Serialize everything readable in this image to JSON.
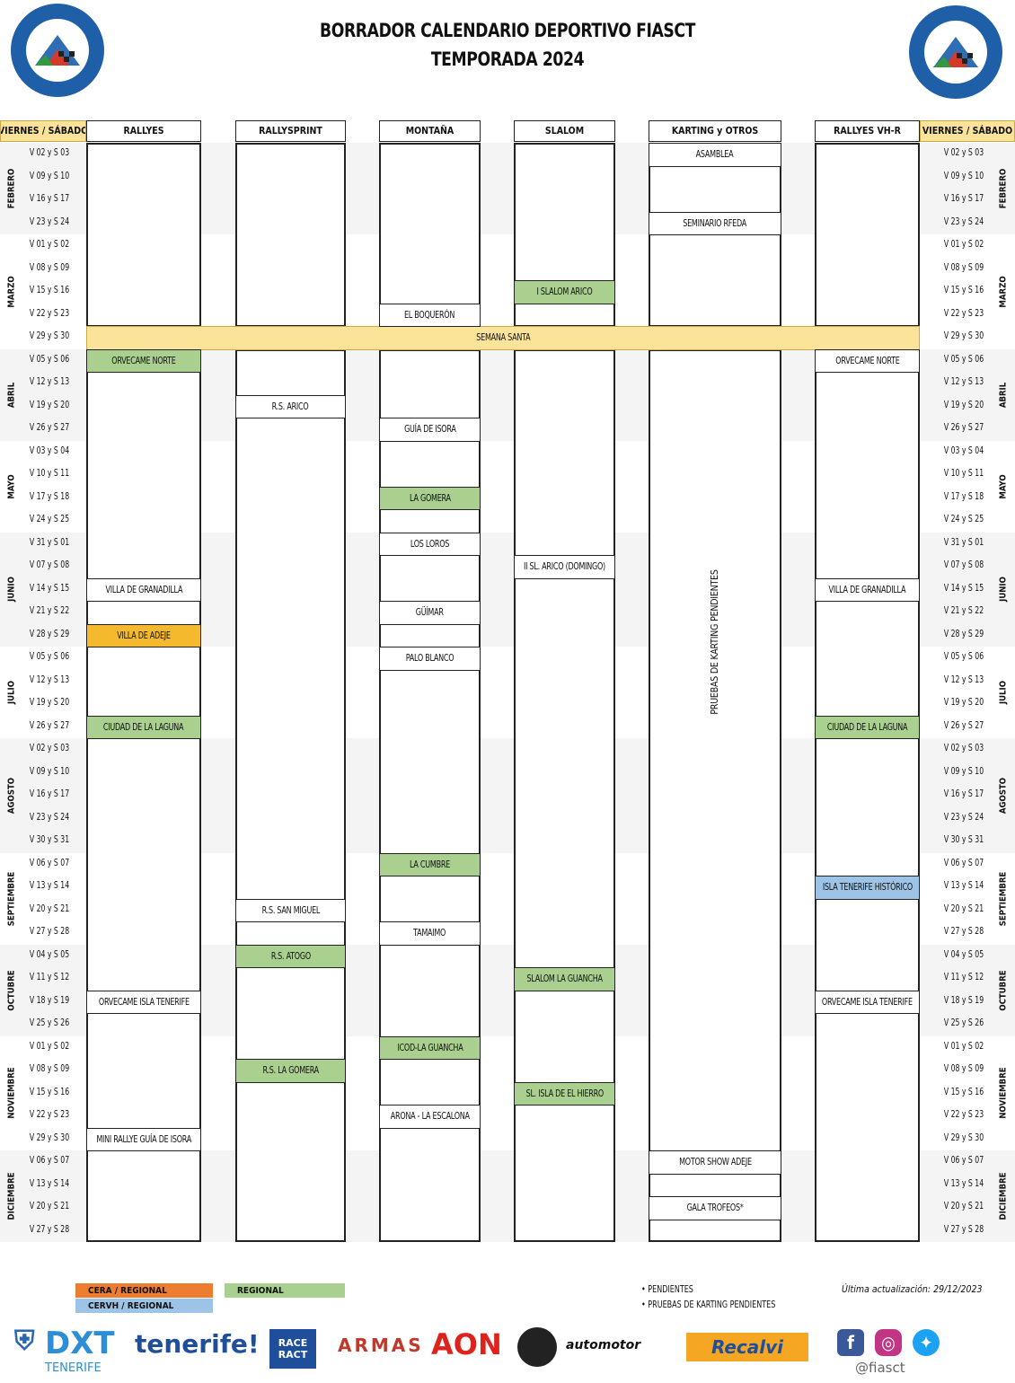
{
  "header": {
    "title": "BORRADOR CALENDARIO DEPORTIVO FIASCT",
    "subtitle": "TEMPORADA 2024"
  },
  "columns": {
    "left_day_header": "VIERNES / SÁBADO",
    "right_day_header": "VIERNES / SÁBADO",
    "disciplines": [
      "RALLYES",
      "RALLYSPRINT",
      "MONTAÑA",
      "SLALOM",
      "KARTING y OTROS",
      "RALLYES VH-R"
    ]
  },
  "months": [
    {
      "name": "FEBRERO",
      "rows": 4
    },
    {
      "name": "MARZO",
      "rows": 5
    },
    {
      "name": "ABRIL",
      "rows": 4
    },
    {
      "name": "MAYO",
      "rows": 4
    },
    {
      "name": "JUNIO",
      "rows": 5
    },
    {
      "name": "JULIO",
      "rows": 4
    },
    {
      "name": "AGOSTO",
      "rows": 5
    },
    {
      "name": "SEPTIEMBRE",
      "rows": 4
    },
    {
      "name": "OCTUBRE",
      "rows": 4
    },
    {
      "name": "NOVIEMBRE",
      "rows": 5
    },
    {
      "name": "DICIEMBRE",
      "rows": 4
    }
  ],
  "days": [
    "V 02 y S 03",
    "V 09 y S 10",
    "V 16 y S 17",
    "V 23 y S 24",
    "V 01 y S 02",
    "V 08 y S 09",
    "V 15 y S 16",
    "V 22 y S 23",
    "V 29 y S 30",
    "V 05 y S 06",
    "V 12 y S 13",
    "V 19 y S 20",
    "V 26 y S 27",
    "V 03 y S 04",
    "V 10 y S 11",
    "V 17 y S 18",
    "V 24 y S 25",
    "V 31 y S 01",
    "V 07 y S 08",
    "V 14 y S 15",
    "V 21 y S 22",
    "V 28 y S 29",
    "V 05 y S 06",
    "V 12 y S 13",
    "V 19 y S 20",
    "V 26 y S 27",
    "V 02 y S 03",
    "V 09 y S 10",
    "V 16 y S 17",
    "V 23 y S 24",
    "V 30 y S 31",
    "V 06 y S 07",
    "V 13 y S 14",
    "V 20 y S 21",
    "V 27 y S 28",
    "V 04 y S 05",
    "V 11 y S 12",
    "V 18 y S 19",
    "V 25 y S 26",
    "V 01 y S 02",
    "V 08 y S 09",
    "V 15 y S 16",
    "V 22 y S 23",
    "V 29 y S 30",
    "V 06 y S 07",
    "V 13 y S 14",
    "V 20 y S 21",
    "V 27 y S 28"
  ],
  "semana_santa": {
    "row": 8,
    "label": "SEMANA SANTA"
  },
  "events": [
    {
      "col": 0,
      "row": 9,
      "label": "ORVECAME NORTE",
      "color": "green"
    },
    {
      "col": 0,
      "row": 19,
      "label": "VILLA DE GRANADILLA",
      "color": "white"
    },
    {
      "col": 0,
      "row": 21,
      "label": "VILLA DE ADEJE",
      "color": "orange"
    },
    {
      "col": 0,
      "row": 25,
      "label": "CIUDAD DE LA LAGUNA",
      "color": "green"
    },
    {
      "col": 0,
      "row": 37,
      "label": "ORVECAME ISLA TENERIFE",
      "color": "white"
    },
    {
      "col": 0,
      "row": 43,
      "label": "MINI RALLYE GUÍA DE ISORA",
      "color": "white"
    },
    {
      "col": 1,
      "row": 11,
      "label": "R.S. ARICO",
      "color": "white"
    },
    {
      "col": 1,
      "row": 33,
      "label": "R.S. SAN MIGUEL",
      "color": "white"
    },
    {
      "col": 1,
      "row": 35,
      "label": "R.S. ATOGO",
      "color": "green"
    },
    {
      "col": 1,
      "row": 40,
      "label": "R.S. LA GOMERA",
      "color": "green"
    },
    {
      "col": 2,
      "row": 7,
      "label": "EL BOQUERÓN",
      "color": "white"
    },
    {
      "col": 2,
      "row": 12,
      "label": "GUÍA DE ISORA",
      "color": "white"
    },
    {
      "col": 2,
      "row": 15,
      "label": "LA GOMERA",
      "color": "green"
    },
    {
      "col": 2,
      "row": 17,
      "label": "LOS LOROS",
      "color": "white"
    },
    {
      "col": 2,
      "row": 20,
      "label": "GÜÍMAR",
      "color": "white"
    },
    {
      "col": 2,
      "row": 22,
      "label": "PALO BLANCO",
      "color": "white"
    },
    {
      "col": 2,
      "row": 31,
      "label": "LA CUMBRE",
      "color": "green"
    },
    {
      "col": 2,
      "row": 34,
      "label": "TAMAIMO",
      "color": "white"
    },
    {
      "col": 2,
      "row": 39,
      "label": "ICOD-LA GUANCHA",
      "color": "green"
    },
    {
      "col": 2,
      "row": 42,
      "label": "ARONA - LA ESCALONA",
      "color": "white"
    },
    {
      "col": 3,
      "row": 6,
      "label": "I SLALOM ARICO",
      "color": "green"
    },
    {
      "col": 3,
      "row": 18,
      "label": "II SL. ARICO (DOMINGO)",
      "color": "white"
    },
    {
      "col": 3,
      "row": 36,
      "label": "SLALOM LA GUANCHA",
      "color": "green"
    },
    {
      "col": 3,
      "row": 41,
      "label": "SL. ISLA DE EL HIERRO",
      "color": "green"
    },
    {
      "col": 4,
      "row": 0,
      "label": "ASAMBLEA",
      "color": "white"
    },
    {
      "col": 4,
      "row": 3,
      "label": "SEMINARIO RFEDA",
      "color": "white"
    },
    {
      "col": 4,
      "row": 44,
      "label": "MOTOR SHOW ADEJE",
      "color": "white"
    },
    {
      "col": 4,
      "row": 46,
      "label": "GALA TROFEOS*",
      "color": "white"
    },
    {
      "col": 5,
      "row": 9,
      "label": "ORVECAME NORTE",
      "color": "white"
    },
    {
      "col": 5,
      "row": 19,
      "label": "VILLA DE GRANADILLA",
      "color": "white"
    },
    {
      "col": 5,
      "row": 25,
      "label": "CIUDAD DE LA LAGUNA",
      "color": "green"
    },
    {
      "col": 5,
      "row": 32,
      "label": "ISLA TENERIFE HISTÓRICO",
      "color": "blue"
    },
    {
      "col": 5,
      "row": 37,
      "label": "ORVECAME ISLA TENERIFE",
      "color": "white"
    }
  ],
  "karting_vertical": "PRUEBAS DE KARTING PENDIENTES",
  "legend": {
    "cera": "CERA / REGIONAL",
    "cervh": "CERVH / REGIONAL",
    "regional": "REGIONAL"
  },
  "notes": [
    "•  PENDIENTES",
    "•  PRUEBAS DE KARTING PENDIENTES"
  ],
  "footer": {
    "updated": "Última actualización: 29/12/2023",
    "handle": "@fiasct"
  },
  "sponsors": {
    "dxt_sub": "TENERIFE"
  },
  "colors": {
    "header_yellow": "#fbe49a",
    "green": "#a9d08e",
    "orange": "#f5b92e",
    "blue": "#9dc3e6",
    "cera_orange": "#ed7d31"
  }
}
